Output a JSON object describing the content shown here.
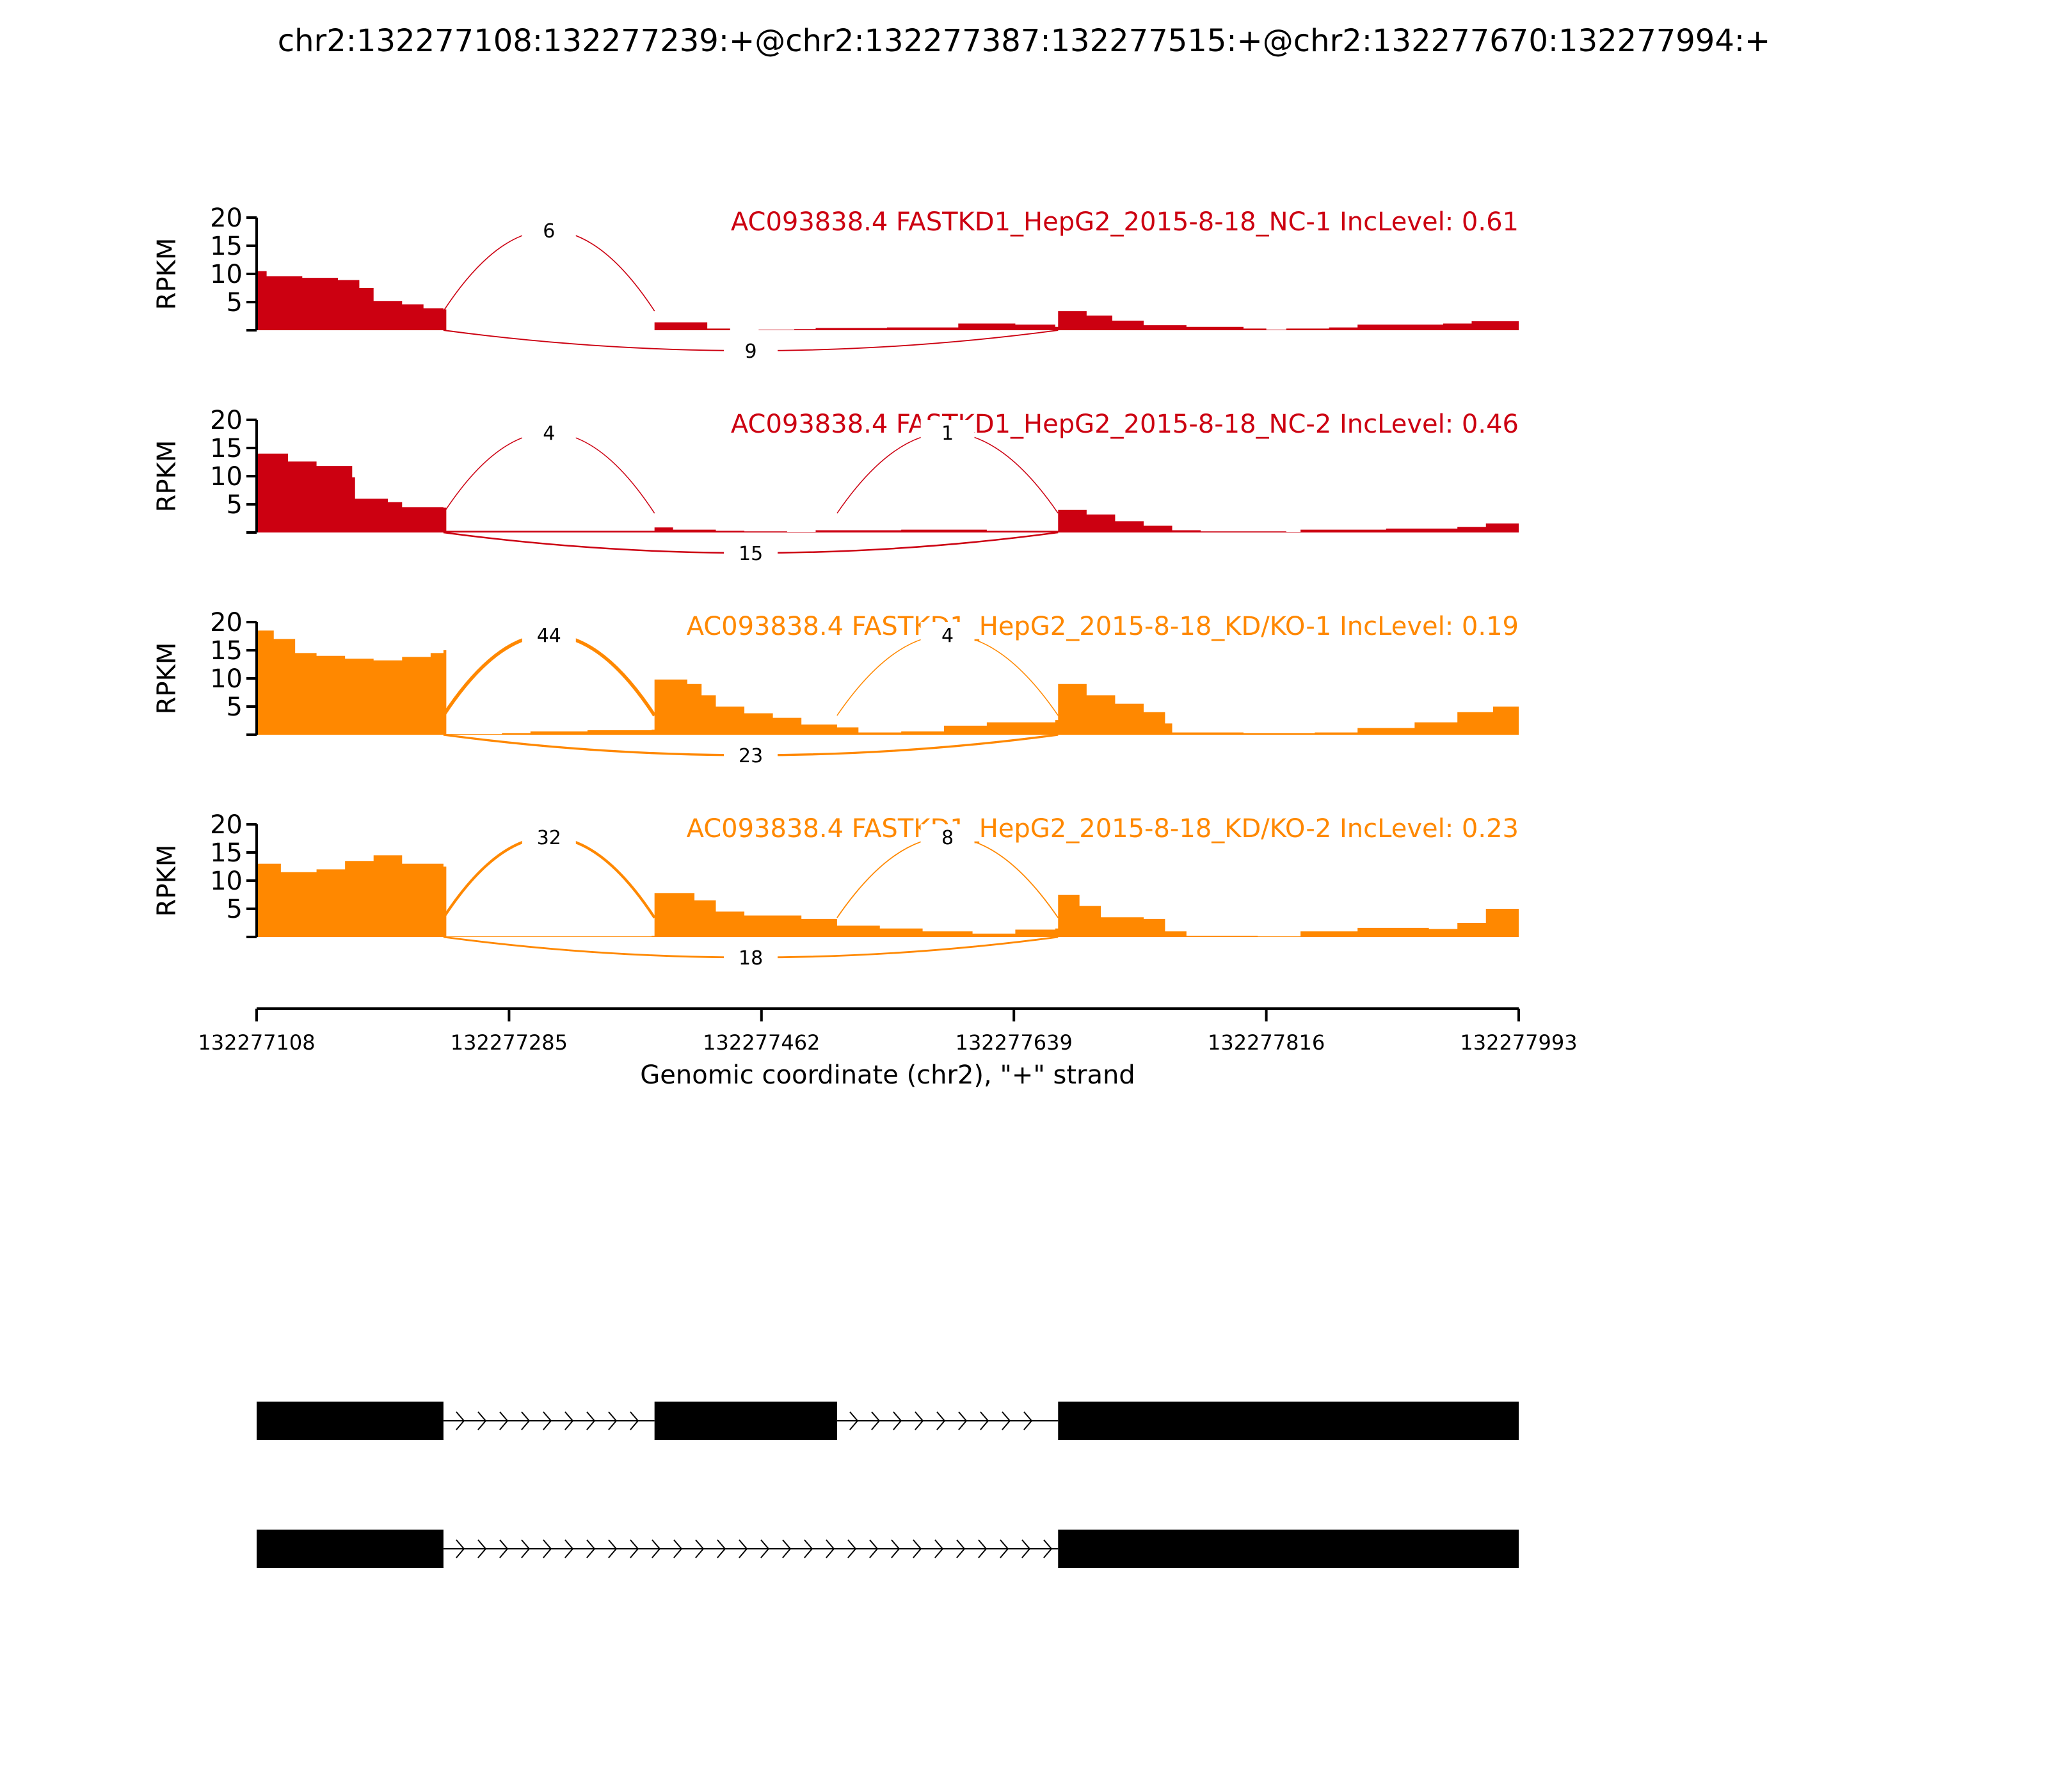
{
  "title": "chr2:132277108:132277239:+@chr2:132277387:132277515:+@chr2:132277670:132277994:+",
  "chart_data": {
    "type": "area",
    "subtype": "sashimi",
    "x_axis": {
      "label": "Genomic coordinate (chr2), \"+\" strand",
      "range": [
        132277108,
        132277993
      ],
      "ticks": [
        132277108,
        132277285,
        132277462,
        132277639,
        132277816,
        132277993
      ]
    },
    "y_axis": {
      "label": "RPKM",
      "range": [
        0,
        20
      ],
      "ticks": [
        5,
        10,
        15,
        20
      ]
    },
    "exons": [
      [
        132277108,
        132277239
      ],
      [
        132277387,
        132277515
      ],
      [
        132277670,
        132277993
      ]
    ],
    "tracks": [
      {
        "label": "AC093838.4 FASTKD1_HepG2_2015-8-18_NC-1 IncLevel: 0.61",
        "color": "#CC0011",
        "coverage": [
          [
            132277108,
            10.5
          ],
          [
            132277115,
            9.6
          ],
          [
            132277140,
            9.3
          ],
          [
            132277165,
            8.9
          ],
          [
            132277180,
            7.5
          ],
          [
            132277190,
            5.2
          ],
          [
            132277210,
            4.6
          ],
          [
            132277225,
            3.9
          ],
          [
            132277239,
            3.7
          ],
          [
            132277241,
            0
          ],
          [
            132277385,
            0
          ],
          [
            132277387,
            1.4
          ],
          [
            132277422,
            1.4
          ],
          [
            132277424,
            0.3
          ],
          [
            132277440,
            0
          ],
          [
            132277460,
            0.1
          ],
          [
            132277485,
            0.2
          ],
          [
            132277500,
            0.4
          ],
          [
            132277550,
            0.5
          ],
          [
            132277600,
            1.2
          ],
          [
            132277640,
            1.0
          ],
          [
            132277668,
            0.6
          ],
          [
            132277670,
            3.4
          ],
          [
            132277690,
            2.6
          ],
          [
            132277708,
            1.7
          ],
          [
            132277730,
            0.9
          ],
          [
            132277760,
            0.6
          ],
          [
            132277800,
            0.3
          ],
          [
            132277816,
            0.1
          ],
          [
            132277830,
            0.3
          ],
          [
            132277860,
            0.5
          ],
          [
            132277880,
            1.0
          ],
          [
            132277940,
            1.2
          ],
          [
            132277960,
            1.6
          ],
          [
            132277993,
            1.7
          ]
        ],
        "junctions": [
          {
            "start": 132277239,
            "end": 132277387,
            "reads": 6,
            "side": "above"
          },
          {
            "start": 132277239,
            "end": 132277670,
            "reads": 9,
            "side": "below"
          }
        ]
      },
      {
        "label": "AC093838.4 FASTKD1_HepG2_2015-8-18_NC-2 IncLevel: 0.46",
        "color": "#CC0011",
        "coverage": [
          [
            132277108,
            14.0
          ],
          [
            132277130,
            12.6
          ],
          [
            132277150,
            11.8
          ],
          [
            132277175,
            9.8
          ],
          [
            132277177,
            6.0
          ],
          [
            132277200,
            5.4
          ],
          [
            132277210,
            4.5
          ],
          [
            132277239,
            4.4
          ],
          [
            132277241,
            0.3
          ],
          [
            132277385,
            0.3
          ],
          [
            132277387,
            0.9
          ],
          [
            132277400,
            0.5
          ],
          [
            132277430,
            0.3
          ],
          [
            132277450,
            0.2
          ],
          [
            132277480,
            0.1
          ],
          [
            132277500,
            0.4
          ],
          [
            132277560,
            0.5
          ],
          [
            132277620,
            0.3
          ],
          [
            132277668,
            0.3
          ],
          [
            132277670,
            4.0
          ],
          [
            132277690,
            3.2
          ],
          [
            132277710,
            2.0
          ],
          [
            132277730,
            1.2
          ],
          [
            132277750,
            0.4
          ],
          [
            132277770,
            0.2
          ],
          [
            132277830,
            0.1
          ],
          [
            132277840,
            0.5
          ],
          [
            132277900,
            0.7
          ],
          [
            132277950,
            1.0
          ],
          [
            132277970,
            1.6
          ],
          [
            132277993,
            1.9
          ]
        ],
        "junctions": [
          {
            "start": 132277239,
            "end": 132277387,
            "reads": 4,
            "side": "above"
          },
          {
            "start": 132277515,
            "end": 132277670,
            "reads": 1,
            "side": "above"
          },
          {
            "start": 132277239,
            "end": 132277670,
            "reads": 15,
            "side": "below"
          }
        ]
      },
      {
        "label": "AC093838.4 FASTKD1_HepG2_2015-8-18_KD/KO-1 IncLevel: 0.19",
        "color": "#FF8800",
        "coverage": [
          [
            132277108,
            18.5
          ],
          [
            132277120,
            17.0
          ],
          [
            132277135,
            14.5
          ],
          [
            132277150,
            14.0
          ],
          [
            132277170,
            13.5
          ],
          [
            132277190,
            13.2
          ],
          [
            132277210,
            13.8
          ],
          [
            132277230,
            14.5
          ],
          [
            132277239,
            15.0
          ],
          [
            132277241,
            0.1
          ],
          [
            132277280,
            0.3
          ],
          [
            132277300,
            0.6
          ],
          [
            132277340,
            0.8
          ],
          [
            132277385,
            0.9
          ],
          [
            132277387,
            9.8
          ],
          [
            132277410,
            9.0
          ],
          [
            132277420,
            7.0
          ],
          [
            132277430,
            5.0
          ],
          [
            132277450,
            3.8
          ],
          [
            132277470,
            3.0
          ],
          [
            132277490,
            1.8
          ],
          [
            132277515,
            1.3
          ],
          [
            132277530,
            0.4
          ],
          [
            132277560,
            0.6
          ],
          [
            132277590,
            1.6
          ],
          [
            132277620,
            2.2
          ],
          [
            132277668,
            2.6
          ],
          [
            132277670,
            9.0
          ],
          [
            132277690,
            7.0
          ],
          [
            132277710,
            5.5
          ],
          [
            132277730,
            4.0
          ],
          [
            132277745,
            2.0
          ],
          [
            132277750,
            0.4
          ],
          [
            132277800,
            0.3
          ],
          [
            132277850,
            0.4
          ],
          [
            132277880,
            1.2
          ],
          [
            132277920,
            2.2
          ],
          [
            132277950,
            4.0
          ],
          [
            132277975,
            5.0
          ],
          [
            132277993,
            6.0
          ]
        ],
        "junctions": [
          {
            "start": 132277239,
            "end": 132277387,
            "reads": 44,
            "side": "above"
          },
          {
            "start": 132277515,
            "end": 132277670,
            "reads": 4,
            "side": "above"
          },
          {
            "start": 132277239,
            "end": 132277670,
            "reads": 23,
            "side": "below"
          }
        ]
      },
      {
        "label": "AC093838.4 FASTKD1_HepG2_2015-8-18_KD/KO-2 IncLevel: 0.23",
        "color": "#FF8800",
        "coverage": [
          [
            132277108,
            13.0
          ],
          [
            132277125,
            11.5
          ],
          [
            132277150,
            12.0
          ],
          [
            132277170,
            13.5
          ],
          [
            132277190,
            14.5
          ],
          [
            132277210,
            13.0
          ],
          [
            132277239,
            12.5
          ],
          [
            132277241,
            0.1
          ],
          [
            132277385,
            0.2
          ],
          [
            132277387,
            7.8
          ],
          [
            132277415,
            6.5
          ],
          [
            132277430,
            4.5
          ],
          [
            132277450,
            3.8
          ],
          [
            132277490,
            3.2
          ],
          [
            132277515,
            2.0
          ],
          [
            132277545,
            1.5
          ],
          [
            132277575,
            1.0
          ],
          [
            132277610,
            0.6
          ],
          [
            132277640,
            1.3
          ],
          [
            132277668,
            1.5
          ],
          [
            132277670,
            7.5
          ],
          [
            132277685,
            5.5
          ],
          [
            132277700,
            3.5
          ],
          [
            132277730,
            3.2
          ],
          [
            132277745,
            1.0
          ],
          [
            132277760,
            0.2
          ],
          [
            132277810,
            0.1
          ],
          [
            132277840,
            1.0
          ],
          [
            132277880,
            1.6
          ],
          [
            132277930,
            1.4
          ],
          [
            132277950,
            2.5
          ],
          [
            132277970,
            5.0
          ],
          [
            132277993,
            5.1
          ]
        ],
        "junctions": [
          {
            "start": 132277239,
            "end": 132277387,
            "reads": 32,
            "side": "above"
          },
          {
            "start": 132277515,
            "end": 132277670,
            "reads": 8,
            "side": "above"
          },
          {
            "start": 132277239,
            "end": 132277670,
            "reads": 18,
            "side": "below"
          }
        ]
      }
    ],
    "isoforms": [
      {
        "exons": [
          [
            132277108,
            132277239
          ],
          [
            132277387,
            132277515
          ],
          [
            132277670,
            132277993
          ]
        ]
      },
      {
        "exons": [
          [
            132277108,
            132277239
          ],
          [
            132277670,
            132277993
          ]
        ]
      }
    ]
  }
}
